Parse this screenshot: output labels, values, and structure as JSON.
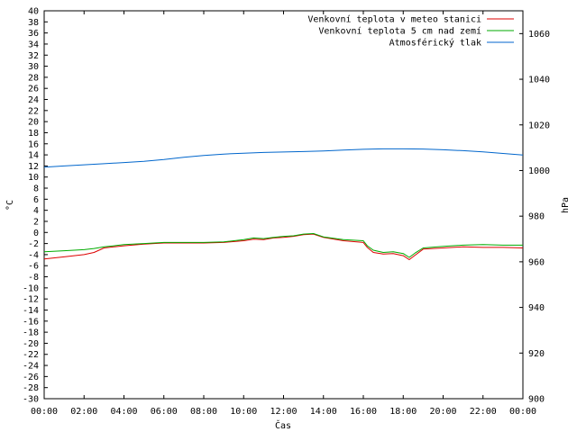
{
  "chart_data": {
    "type": "line",
    "xlabel": "Čas",
    "ylabel_left": "°C",
    "ylabel_right": "hPa",
    "x_ticks": [
      "00:00",
      "02:00",
      "04:00",
      "06:00",
      "08:00",
      "10:00",
      "12:00",
      "14:00",
      "16:00",
      "18:00",
      "20:00",
      "22:00",
      "00:00"
    ],
    "x_range_hours": [
      0,
      24
    ],
    "y_left_range": [
      -30,
      40
    ],
    "y_left_step": 2,
    "y_right_range": [
      900,
      1070
    ],
    "y_right_ticks": [
      900,
      920,
      940,
      960,
      980,
      1000,
      1020,
      1040,
      1060
    ],
    "grid": false,
    "legend_position": "top-right",
    "series": [
      {
        "name": "Venkovní teplota v meteo stanici",
        "axis": "left",
        "color": "#dd0000",
        "x": [
          0,
          1,
          2,
          2.5,
          3,
          3.5,
          4,
          5,
          6,
          7,
          8,
          9,
          10,
          10.5,
          11,
          11.5,
          12,
          12.5,
          13,
          13.5,
          14,
          15,
          16,
          16.2,
          16.5,
          17,
          17.5,
          18,
          18.3,
          18.6,
          19,
          20,
          21,
          22,
          23,
          24
        ],
        "values": [
          -4.8,
          -4.4,
          -4.0,
          -3.6,
          -2.8,
          -2.6,
          -2.4,
          -2.1,
          -1.9,
          -1.9,
          -1.9,
          -1.8,
          -1.5,
          -1.2,
          -1.3,
          -1.0,
          -0.9,
          -0.7,
          -0.4,
          -0.3,
          -0.9,
          -1.5,
          -1.8,
          -2.7,
          -3.6,
          -3.9,
          -3.8,
          -4.2,
          -4.9,
          -4.1,
          -3.0,
          -2.8,
          -2.6,
          -2.7,
          -2.7,
          -2.8
        ]
      },
      {
        "name": "Venkovní teplota 5 cm nad zemí",
        "axis": "left",
        "color": "#00aa00",
        "x": [
          0,
          1,
          2,
          2.5,
          3,
          3.5,
          4,
          5,
          6,
          7,
          8,
          9,
          10,
          10.5,
          11,
          11.5,
          12,
          12.5,
          13,
          13.5,
          14,
          15,
          16,
          16.2,
          16.5,
          17,
          17.5,
          18,
          18.3,
          18.6,
          19,
          20,
          21,
          22,
          23,
          24
        ],
        "values": [
          -3.5,
          -3.3,
          -3.1,
          -2.9,
          -2.6,
          -2.4,
          -2.2,
          -2.0,
          -1.8,
          -1.8,
          -1.8,
          -1.7,
          -1.3,
          -1.0,
          -1.1,
          -0.9,
          -0.7,
          -0.6,
          -0.3,
          -0.2,
          -0.8,
          -1.3,
          -1.5,
          -2.4,
          -3.2,
          -3.6,
          -3.5,
          -3.8,
          -4.5,
          -3.7,
          -2.8,
          -2.5,
          -2.3,
          -2.2,
          -2.3,
          -2.3
        ]
      },
      {
        "name": "Atmosférický tlak",
        "axis": "right",
        "color": "#0066cc",
        "x": [
          0,
          1,
          2,
          3,
          4,
          5,
          6,
          7,
          8,
          9,
          10,
          11,
          12,
          13,
          14,
          15,
          16,
          17,
          18,
          19,
          20,
          21,
          22,
          23,
          24
        ],
        "values": [
          1001.5,
          1002.0,
          1002.5,
          1003.0,
          1003.5,
          1004.0,
          1004.8,
          1005.8,
          1006.6,
          1007.2,
          1007.6,
          1007.9,
          1008.1,
          1008.3,
          1008.6,
          1009.0,
          1009.3,
          1009.5,
          1009.5,
          1009.4,
          1009.1,
          1008.7,
          1008.2,
          1007.5,
          1006.8
        ]
      }
    ]
  }
}
